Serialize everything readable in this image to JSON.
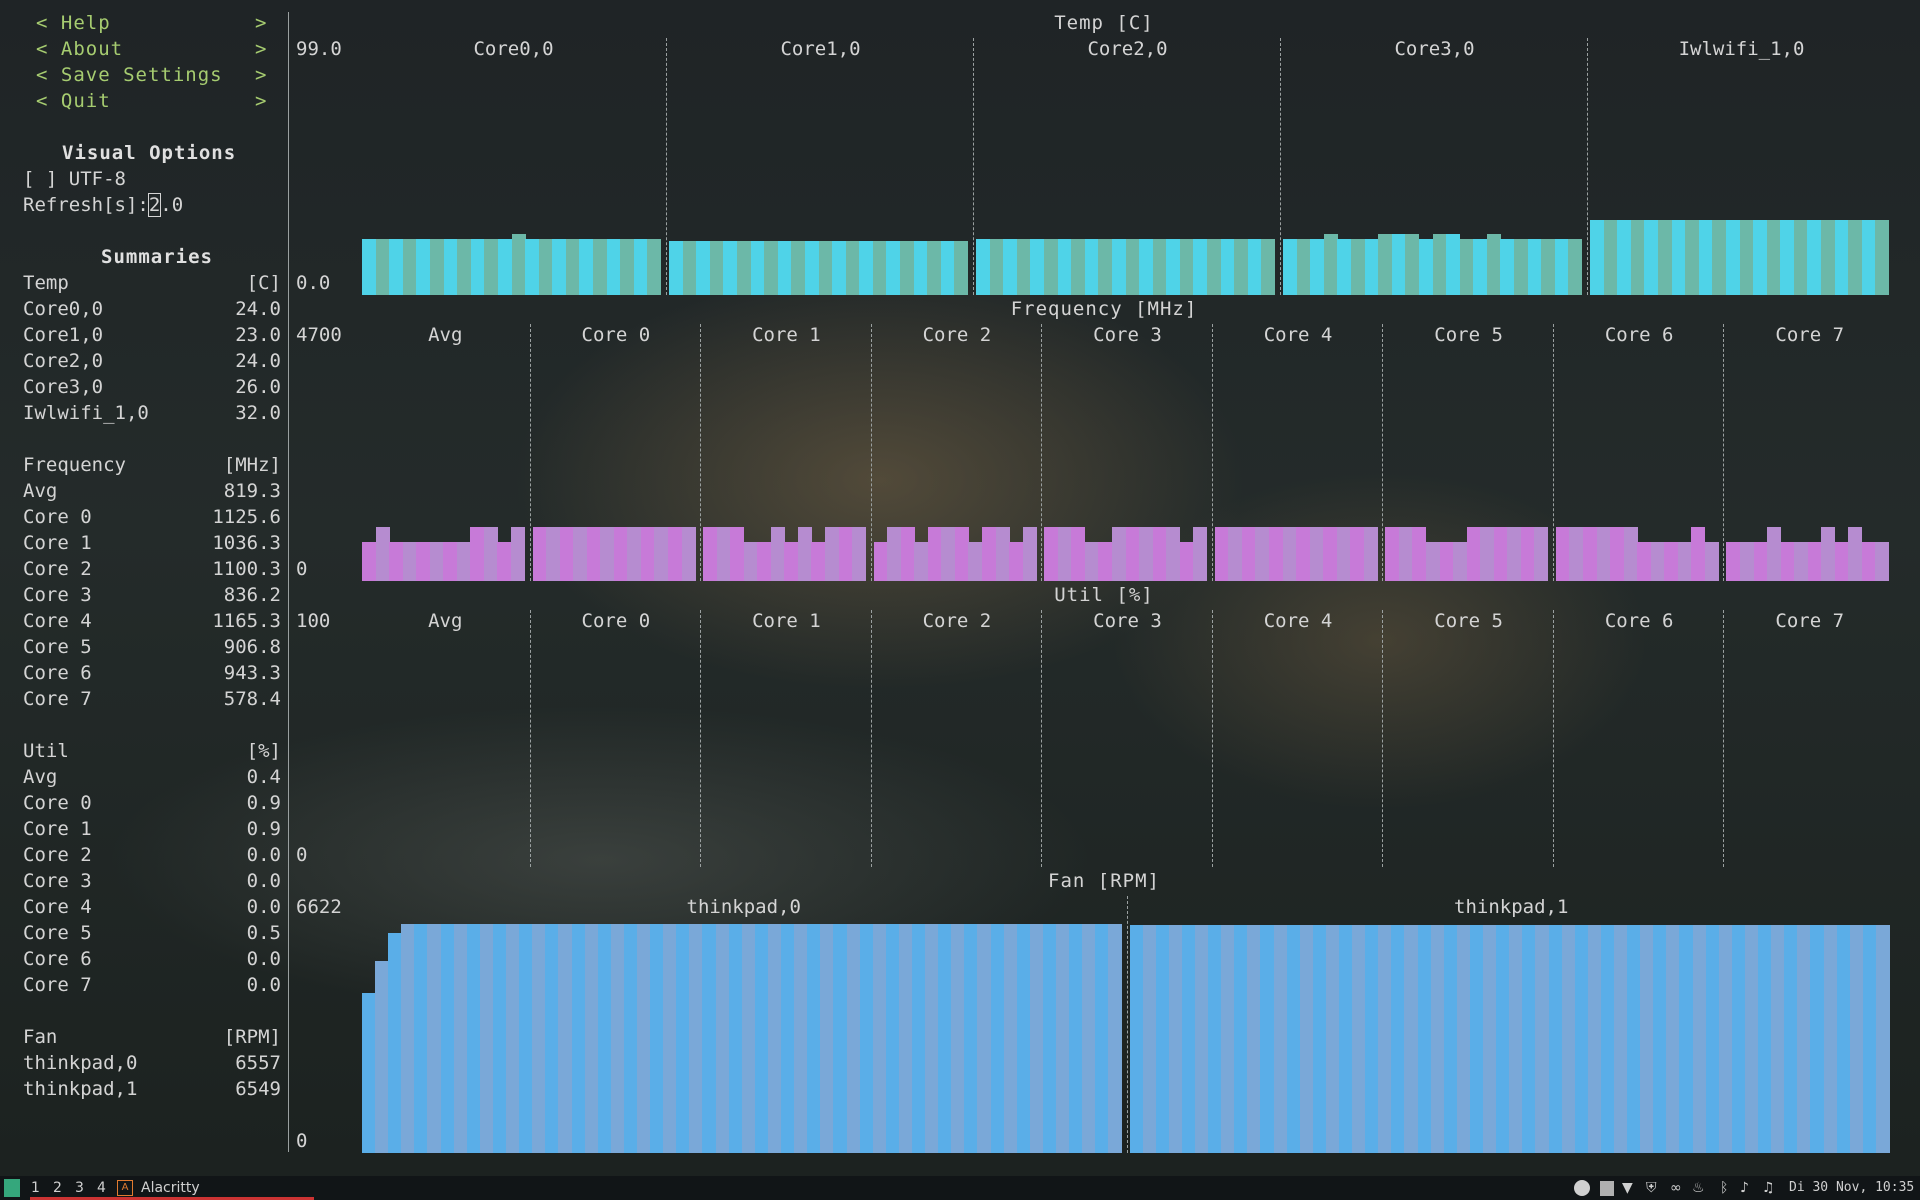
{
  "menu": [
    {
      "label": "< Help",
      "arrow": ">"
    },
    {
      "label": "< About",
      "arrow": ">"
    },
    {
      "label": "< Save Settings",
      "arrow": ">"
    },
    {
      "label": "< Quit",
      "arrow": ">"
    }
  ],
  "visual_options": {
    "title": "Visual Options",
    "utf8": "[ ] UTF-8",
    "refresh_label": "Refresh[s]:",
    "refresh_cursor": "2",
    "refresh_rest": ".0"
  },
  "summaries": {
    "title": "Summaries",
    "temp": {
      "header": "Temp",
      "unit": "[C]",
      "rows": [
        {
          "name": "Core0,0",
          "value": "24.0"
        },
        {
          "name": "Core1,0",
          "value": "23.0"
        },
        {
          "name": "Core2,0",
          "value": "24.0"
        },
        {
          "name": "Core3,0",
          "value": "26.0"
        },
        {
          "name": "Iwlwifi_1,0",
          "value": "32.0"
        }
      ]
    },
    "freq": {
      "header": "Frequency",
      "unit": "[MHz]",
      "rows": [
        {
          "name": "Avg",
          "value": "819.3"
        },
        {
          "name": "Core 0",
          "value": "1125.6"
        },
        {
          "name": "Core 1",
          "value": "1036.3"
        },
        {
          "name": "Core 2",
          "value": "1100.3"
        },
        {
          "name": "Core 3",
          "value": "836.2"
        },
        {
          "name": "Core 4",
          "value": "1165.3"
        },
        {
          "name": "Core 5",
          "value": "906.8"
        },
        {
          "name": "Core 6",
          "value": "943.3"
        },
        {
          "name": "Core 7",
          "value": "578.4"
        }
      ]
    },
    "util": {
      "header": "Util",
      "unit": "[%]",
      "rows": [
        {
          "name": "Avg",
          "value": "0.4"
        },
        {
          "name": "Core 0",
          "value": "0.9"
        },
        {
          "name": "Core 1",
          "value": "0.9"
        },
        {
          "name": "Core 2",
          "value": "0.0"
        },
        {
          "name": "Core 3",
          "value": "0.0"
        },
        {
          "name": "Core 4",
          "value": "0.0"
        },
        {
          "name": "Core 5",
          "value": "0.5"
        },
        {
          "name": "Core 6",
          "value": "0.0"
        },
        {
          "name": "Core 7",
          "value": "0.0"
        }
      ]
    },
    "fan": {
      "header": "Fan",
      "unit": "[RPM]",
      "rows": [
        {
          "name": "thinkpad,0",
          "value": "6557"
        },
        {
          "name": "thinkpad,1",
          "value": "6549"
        }
      ]
    }
  },
  "graphs": {
    "temp": {
      "title": "Temp [C]",
      "max": "99.0",
      "min": "0.0",
      "color_a": "#4fd3e8",
      "color_b": "#6cb8a8",
      "columns": [
        "Core0,0",
        "Core1,0",
        "Core2,0",
        "Core3,0",
        "Iwlwifi_1,0"
      ],
      "vmax": 99,
      "levels": [
        [
          24,
          24,
          24,
          24,
          24,
          24,
          24,
          24,
          24,
          24,
          24,
          26,
          24,
          24,
          24,
          24,
          24,
          24,
          24,
          24,
          24,
          24
        ],
        [
          23,
          23,
          23,
          23,
          23,
          23,
          23,
          23,
          23,
          23,
          23,
          23,
          23,
          23,
          23,
          23,
          23,
          23,
          23,
          23,
          23,
          23
        ],
        [
          24,
          24,
          24,
          24,
          24,
          24,
          24,
          24,
          24,
          24,
          24,
          24,
          24,
          24,
          24,
          24,
          24,
          24,
          24,
          24,
          24,
          24
        ],
        [
          24,
          24,
          24,
          26,
          24,
          24,
          24,
          26,
          26,
          26,
          24,
          26,
          26,
          24,
          24,
          26,
          24,
          24,
          24,
          24,
          24,
          24
        ],
        [
          32,
          32,
          32,
          32,
          32,
          32,
          32,
          32,
          32,
          32,
          32,
          32,
          32,
          32,
          32,
          32,
          32,
          32,
          32,
          32,
          32,
          32
        ]
      ]
    },
    "freq": {
      "title": "Frequency [MHz]",
      "max": "4700",
      "min": "0",
      "color_a": "#c77ad8",
      "color_b": "#b68cd0",
      "columns": [
        "Avg",
        "Core 0",
        "Core 1",
        "Core 2",
        "Core 3",
        "Core 4",
        "Core 5",
        "Core 6",
        "Core 7"
      ],
      "vmax": 4700,
      "levels": [
        [
          800,
          1100,
          800,
          800,
          800,
          800,
          800,
          800,
          1100,
          1100,
          800,
          1100
        ],
        [
          1100,
          1100,
          1100,
          1100,
          1100,
          1100,
          1100,
          1100,
          1100,
          1100,
          1100,
          1100
        ],
        [
          1100,
          1100,
          1100,
          800,
          800,
          1100,
          800,
          1100,
          800,
          1100,
          1100,
          1100
        ],
        [
          800,
          1100,
          1100,
          800,
          1100,
          1100,
          1100,
          800,
          1100,
          1100,
          800,
          1100
        ],
        [
          1100,
          1100,
          1100,
          800,
          800,
          1100,
          1100,
          1100,
          1100,
          1100,
          800,
          1100
        ],
        [
          1100,
          1100,
          1100,
          1100,
          1100,
          1100,
          1100,
          1100,
          1100,
          1100,
          1100,
          1100
        ],
        [
          1100,
          1100,
          1100,
          800,
          800,
          800,
          1100,
          1100,
          1100,
          1100,
          1100,
          1100
        ],
        [
          1100,
          1100,
          1100,
          1100,
          1100,
          1100,
          800,
          800,
          800,
          800,
          1100,
          800
        ],
        [
          800,
          800,
          800,
          1100,
          800,
          800,
          800,
          1100,
          800,
          1100,
          800,
          800
        ]
      ]
    },
    "util": {
      "title": "Util [%]",
      "max": "100",
      "min": "0",
      "columns": [
        "Avg",
        "Core 0",
        "Core 1",
        "Core 2",
        "Core 3",
        "Core 4",
        "Core 5",
        "Core 6",
        "Core 7"
      ]
    },
    "fan": {
      "title": "Fan [RPM]",
      "max": "6622",
      "min": "0",
      "color_a": "#5aaee8",
      "color_b": "#7aa8d8",
      "columns": [
        "thinkpad,0",
        "thinkpad,1"
      ],
      "vmax": 6622,
      "levels": [
        [
          4600,
          5500,
          6300,
          6557,
          6557,
          6557,
          6557,
          6557,
          6557,
          6557,
          6557,
          6557,
          6557,
          6557,
          6557,
          6557,
          6557,
          6557,
          6557,
          6557,
          6557,
          6557,
          6557,
          6557,
          6557,
          6557,
          6557,
          6557,
          6557,
          6557,
          6557,
          6557,
          6557,
          6557,
          6557,
          6557,
          6557,
          6557,
          6557,
          6557,
          6557,
          6557,
          6557,
          6557,
          6557,
          6557,
          6557,
          6557,
          6557,
          6557,
          6557,
          6557,
          6557,
          6557,
          6557,
          6557,
          6557,
          6557
        ],
        [
          6549,
          6549,
          6549,
          6549,
          6549,
          6549,
          6549,
          6549,
          6549,
          6549,
          6549,
          6549,
          6549,
          6549,
          6549,
          6549,
          6549,
          6549,
          6549,
          6549,
          6549,
          6549,
          6549,
          6549,
          6549,
          6549,
          6549,
          6549,
          6549,
          6549,
          6549,
          6549,
          6549,
          6549,
          6549,
          6549,
          6549,
          6549,
          6549,
          6549,
          6549,
          6549,
          6549,
          6549,
          6549,
          6549,
          6549,
          6549,
          6549,
          6549,
          6549,
          6549,
          6549,
          6549,
          6549,
          6549,
          6549,
          6549
        ]
      ]
    }
  },
  "taskbar": {
    "workspaces": [
      "1",
      "2",
      "3",
      "4"
    ],
    "app_name": "Alacritty",
    "clock": "Di 30 Nov, 10:35"
  }
}
